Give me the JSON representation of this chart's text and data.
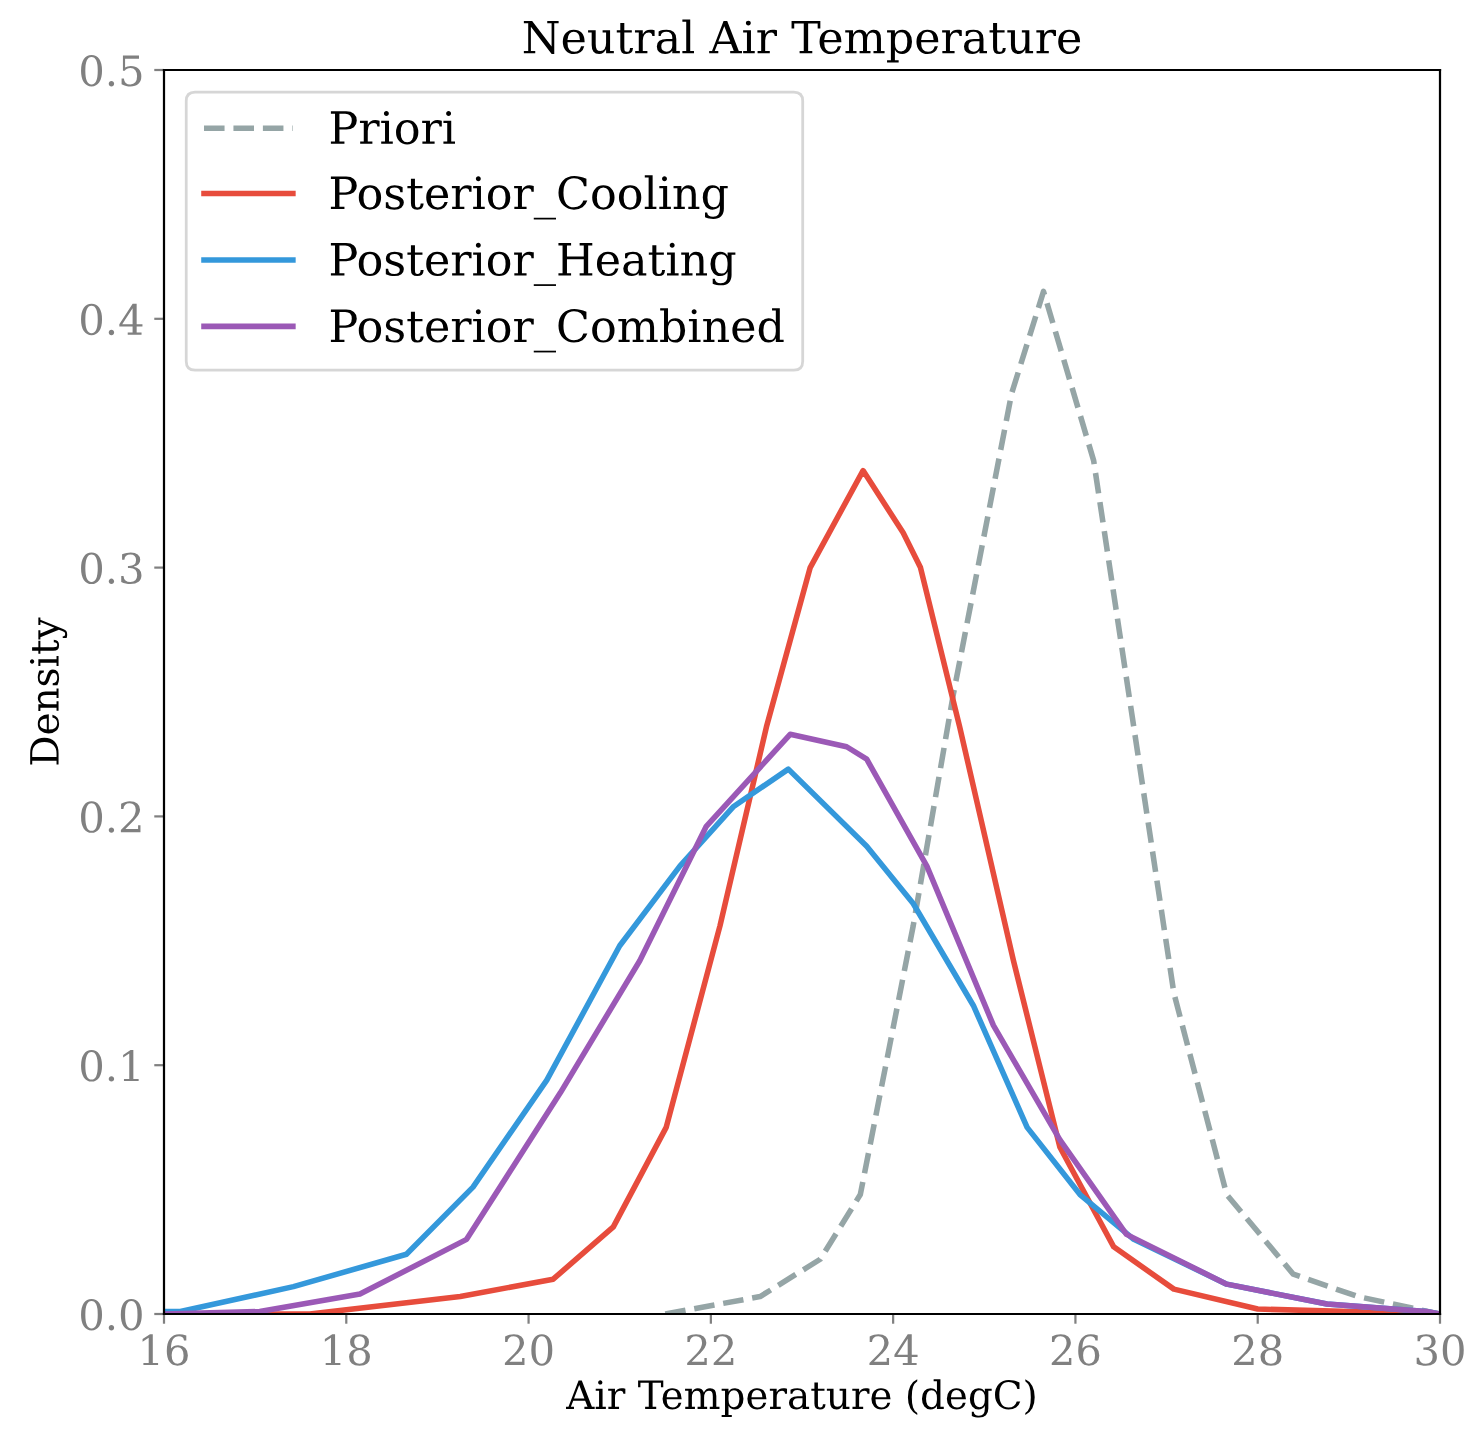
{
  "chart_data": {
    "type": "line",
    "title": "Neutral Air Temperature",
    "xlabel": "Air Temperature (degC)",
    "ylabel": "Density",
    "xlim": [
      16,
      30
    ],
    "xticks": [
      16,
      18,
      20,
      22,
      24,
      26,
      28,
      30
    ],
    "ylim": [
      0,
      0.5
    ],
    "yticks": [
      {
        "value": 0,
        "label": "0.0"
      },
      0.1,
      0.2,
      0.3,
      0.4,
      0.5
    ],
    "grid": false,
    "legend": "top left",
    "series": [
      {
        "name": "Priori",
        "color": "#95a5a6",
        "line_style": "dashed",
        "x": [
          21.5,
          22.54,
          23.2,
          23.64,
          24.22,
          24.66,
          25.3,
          25.65,
          26.2,
          26.64,
          27.08,
          27.66,
          28.39,
          29.1,
          30
        ],
        "values": [
          0,
          0.007,
          0.022,
          0.048,
          0.156,
          0.249,
          0.37,
          0.411,
          0.343,
          0.236,
          0.129,
          0.048,
          0.016,
          0.007,
          0
        ]
      },
      {
        "name": "Posterior_Cooling",
        "color": "#e74c3c",
        "line_style": "solid",
        "x": [
          16,
          17.6,
          19.25,
          20.27,
          20.93,
          21.51,
          22.1,
          22.61,
          23.09,
          23.67,
          24.11,
          24.3,
          24.73,
          25.32,
          25.83,
          26.42,
          27.08,
          28.0,
          30
        ],
        "values": [
          0,
          0,
          0.007,
          0.014,
          0.035,
          0.075,
          0.156,
          0.236,
          0.3,
          0.339,
          0.314,
          0.3,
          0.236,
          0.142,
          0.067,
          0.027,
          0.01,
          0.002,
          0
        ]
      },
      {
        "name": "Posterior_Heating",
        "color": "#3498db",
        "line_style": "solid",
        "x": [
          16,
          16.18,
          17.42,
          18.66,
          19.39,
          20.2,
          21.0,
          21.66,
          22.25,
          22.85,
          23.71,
          24.22,
          24.88,
          25.47,
          26.05,
          26.64,
          27.66,
          28.76,
          29.85,
          30
        ],
        "values": [
          0.001,
          0.001,
          0.011,
          0.024,
          0.051,
          0.094,
          0.148,
          0.18,
          0.204,
          0.219,
          0.188,
          0.165,
          0.124,
          0.075,
          0.048,
          0.03,
          0.012,
          0.004,
          0.001,
          0
        ]
      },
      {
        "name": "Posterior_Combined",
        "color": "#9b59b6",
        "line_style": "solid",
        "x": [
          16,
          17.05,
          18.15,
          19.32,
          20.35,
          21.22,
          21.95,
          22.87,
          23.49,
          23.71,
          24.37,
          25.1,
          25.83,
          26.56,
          27.66,
          28.76,
          29.85,
          30
        ],
        "values": [
          0,
          0.001,
          0.008,
          0.03,
          0.089,
          0.142,
          0.196,
          0.233,
          0.228,
          0.223,
          0.18,
          0.116,
          0.07,
          0.032,
          0.012,
          0.004,
          0.001,
          0
        ]
      }
    ]
  }
}
